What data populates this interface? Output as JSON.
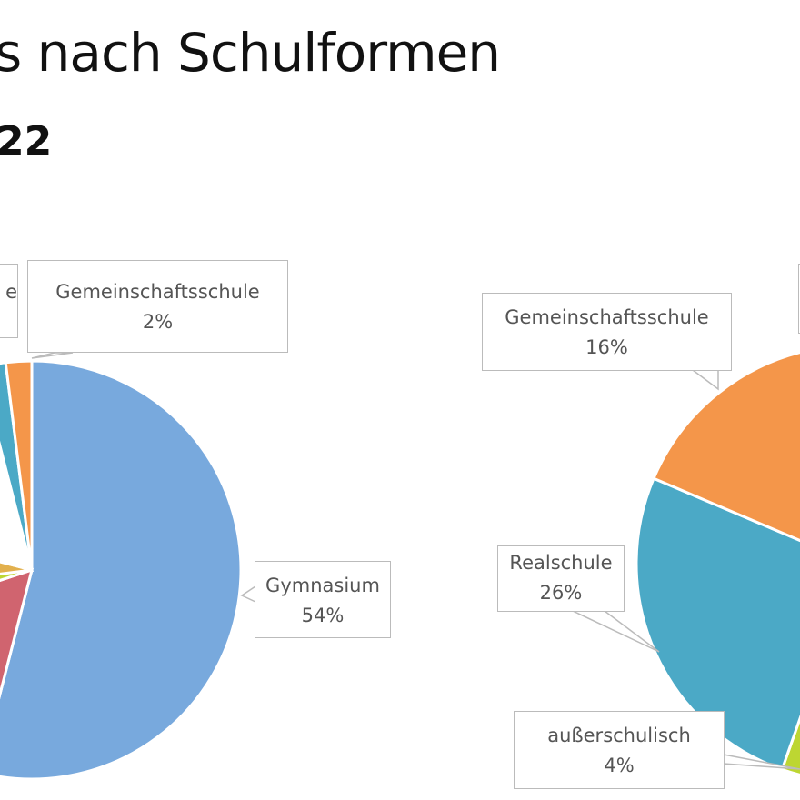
{
  "title": "s nach Schulformen",
  "subtitle": "22",
  "chart_data": [
    {
      "type": "pie",
      "title": "",
      "slices": [
        {
          "label": "Gymnasium",
          "value": 54,
          "color": "#78A9DD"
        },
        {
          "label": null,
          "value": 16,
          "color": "#D0646F"
        },
        {
          "label": null,
          "value": 3,
          "color": "#BDD632"
        },
        {
          "label": null,
          "value": 6,
          "color": "#E2B04D"
        },
        {
          "label": null,
          "value": 17,
          "color": "#FFFFFF"
        },
        {
          "label": null,
          "value": 2,
          "color": "#4BA9C6"
        },
        {
          "label": "Gemeinschaftsschule",
          "value": 2,
          "color": "#F4964A"
        }
      ],
      "labels": {
        "gymnasium": {
          "name": "Gymnasium",
          "pct": "54%"
        },
        "gemeinschaftsschule": {
          "name": "Gemeinschaftsschule",
          "pct": "2%"
        },
        "cropped": {
          "name": "e"
        }
      }
    },
    {
      "type": "pie",
      "title": "",
      "slices": [
        {
          "label": "außerschulisch",
          "value": 4,
          "color": "#BDD632"
        },
        {
          "label": "Realschule",
          "value": 26,
          "color": "#4BA9C6"
        },
        {
          "label": "Gemeinschaftsschule",
          "value": 16,
          "color": "#F4964A"
        }
      ],
      "labels": {
        "gemeinschaftsschule": {
          "name": "Gemeinschaftsschule",
          "pct": "16%"
        },
        "realschule": {
          "name": "Realschule",
          "pct": "26%"
        },
        "ausserschulisch": {
          "name": "außerschulisch",
          "pct": "4%"
        }
      }
    }
  ]
}
